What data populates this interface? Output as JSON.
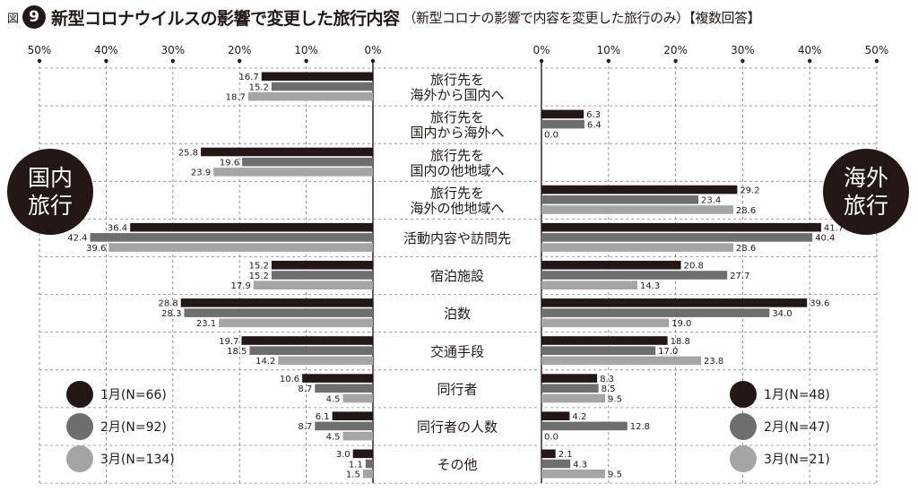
{
  "title": {
    "fig_label": "図",
    "fig_number": "9",
    "main": "新型コロナウイルスの影響で変更した旅行内容",
    "sub": "（新型コロナの影響で内容を変更した旅行のみ）【複数回答】"
  },
  "badges": {
    "left": "国内\n旅行",
    "right": "海外\n旅行"
  },
  "legend_left": [
    {
      "label": "1月(N=66)",
      "color": "#231815"
    },
    {
      "label": "2月(N=92)",
      "color": "#6e6e6e"
    },
    {
      "label": "3月(N=134)",
      "color": "#a5a5a5"
    }
  ],
  "legend_right": [
    {
      "label": "1月(N=48)",
      "color": "#231815"
    },
    {
      "label": "2月(N=47)",
      "color": "#6e6e6e"
    },
    {
      "label": "3月(N=21)",
      "color": "#a5a5a5"
    }
  ],
  "chart_data": {
    "type": "bar",
    "orientation": "horizontal-butterfly",
    "categories": [
      "旅行先を\n海外から国内へ",
      "旅行先を\n国内から海外へ",
      "旅行先を\n国内の他地域へ",
      "旅行先を\n海外の他地域へ",
      "活動内容や訪問先",
      "宿泊施設",
      "泊数",
      "交通手段",
      "同行者",
      "同行者の人数",
      "その他"
    ],
    "xlim": [
      0,
      50
    ],
    "ticks": [
      "0%",
      "10%",
      "20%",
      "30%",
      "40%",
      "50%"
    ],
    "grid": true,
    "domestic": {
      "series": [
        {
          "name": "1月(N=66)",
          "color": "#231815",
          "values": [
            16.7,
            null,
            25.8,
            null,
            36.4,
            15.2,
            28.8,
            19.7,
            10.6,
            6.1,
            3.0
          ]
        },
        {
          "name": "2月(N=92)",
          "color": "#6e6e6e",
          "values": [
            15.2,
            null,
            19.6,
            null,
            42.4,
            15.2,
            28.3,
            18.5,
            8.7,
            8.7,
            1.1
          ]
        },
        {
          "name": "3月(N=134)",
          "color": "#a5a5a5",
          "values": [
            18.7,
            null,
            23.9,
            null,
            39.6,
            17.9,
            23.1,
            14.2,
            4.5,
            4.5,
            1.5
          ]
        }
      ]
    },
    "overseas": {
      "series": [
        {
          "name": "1月(N=48)",
          "color": "#231815",
          "values": [
            null,
            6.3,
            null,
            29.2,
            41.7,
            20.8,
            39.6,
            18.8,
            8.3,
            4.2,
            2.1
          ]
        },
        {
          "name": "2月(N=47)",
          "color": "#6e6e6e",
          "values": [
            null,
            6.4,
            null,
            23.4,
            40.4,
            27.7,
            34.0,
            17.0,
            8.5,
            12.8,
            4.3
          ]
        },
        {
          "name": "3月(N=21)",
          "color": "#a5a5a5",
          "values": [
            null,
            0.0,
            null,
            28.6,
            28.6,
            14.3,
            19.0,
            23.8,
            9.5,
            0.0,
            9.5
          ]
        }
      ]
    }
  }
}
